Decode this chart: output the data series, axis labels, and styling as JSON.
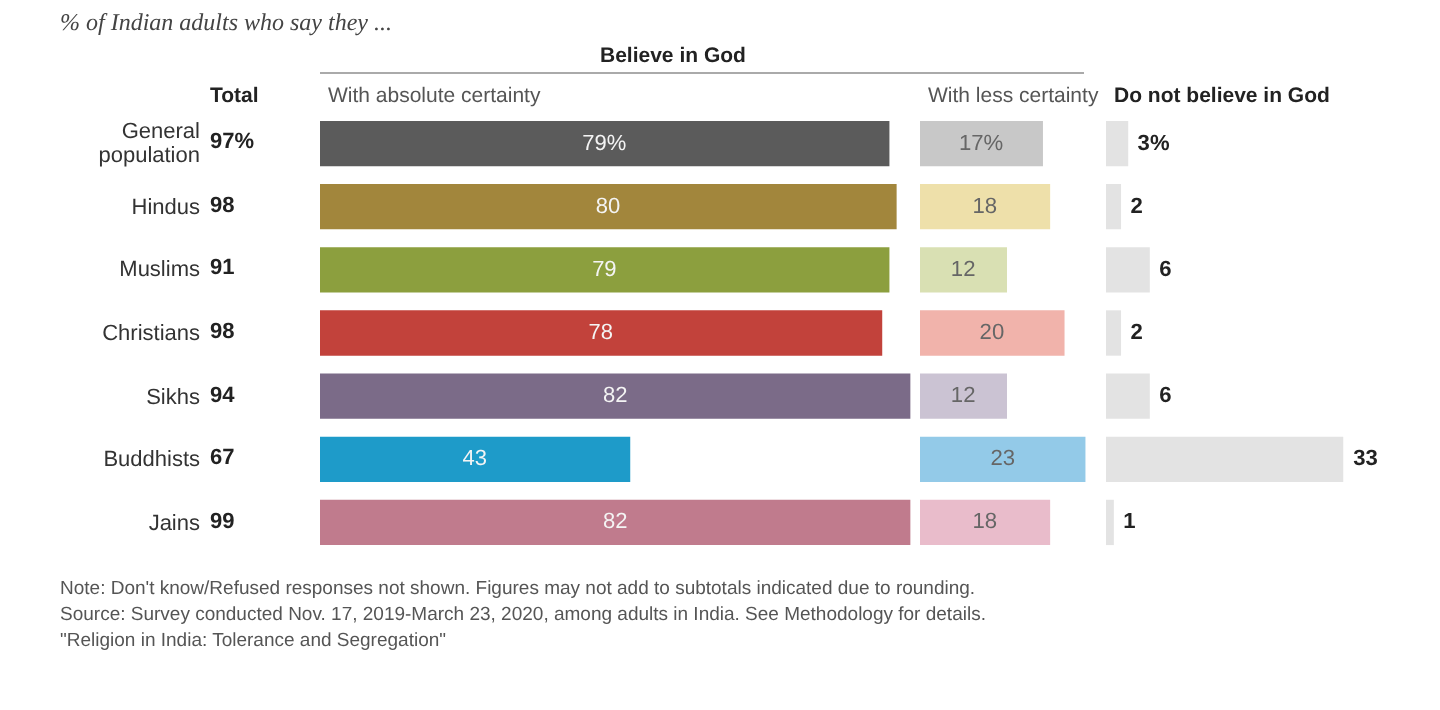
{
  "chart_data": [
    {
      "type": "other",
      "title": "% of Indian adults who say they ...",
      "xlabel": "Total",
      "categories": [
        "General population",
        "Hindus",
        "Muslims",
        "Christians",
        "Sikhs",
        "Buddhists",
        "Jains"
      ],
      "values": [
        97,
        98,
        91,
        98,
        94,
        67,
        99
      ],
      "value_labels": [
        "97%",
        "98",
        "91",
        "98",
        "94",
        "67",
        "99"
      ],
      "annotations": [
        "Note: Don't know/Refused responses not shown. Figures may not add to subtotals indicated due to rounding.",
        "Source: Survey conducted Nov. 17, 2019-March 23, 2020, among adults in India. See Methodology for details.",
        "\"Religion in India: Tolerance and Segregation\""
      ]
    },
    {
      "type": "bar",
      "orientation": "horizontal",
      "title": "With absolute certainty",
      "annotations": [
        "Believe in God"
      ],
      "categories": [
        null,
        null,
        null,
        null,
        null,
        null,
        null
      ],
      "values": [
        79,
        80,
        79,
        78,
        82,
        43,
        82
      ],
      "value_labels": [
        "79%",
        "80",
        "79",
        "78",
        "82",
        "43",
        "82"
      ],
      "colors": [
        "#5b5b5b",
        "#a2863c",
        "#8c9f3e",
        "#c2423b",
        "#7b6b88",
        "#1e9bc9",
        "#c07b8d"
      ],
      "xlim": [
        0,
        82
      ],
      "tick_labels": false
    },
    {
      "type": "bar",
      "orientation": "horizontal",
      "title": "With less certainty",
      "categories": [
        null,
        null,
        null,
        null,
        null,
        null,
        null
      ],
      "values": [
        17,
        18,
        12,
        20,
        12,
        23,
        18
      ],
      "value_labels": [
        "17%",
        "18",
        "12",
        "20",
        "12",
        "23",
        "18"
      ],
      "colors": [
        "#c8c8c8",
        "#eee0aa",
        "#d9e0b3",
        "#f1b3ab",
        "#cbc3d3",
        "#93cae8",
        "#e9bccb"
      ],
      "xlim": [
        0,
        23
      ],
      "tick_labels": false
    },
    {
      "type": "bar",
      "orientation": "horizontal",
      "title": "Do not believe in God",
      "categories": [
        null,
        null,
        null,
        null,
        null,
        null,
        null
      ],
      "values": [
        3,
        2,
        6,
        2,
        6,
        33,
        1
      ],
      "value_labels": [
        "3%",
        "2",
        "6",
        "2",
        "6",
        "33",
        "1"
      ],
      "colors": [
        "#e3e3e3",
        "#e3e3e3",
        "#e3e3e3",
        "#e3e3e3",
        "#e3e3e3",
        "#e3e3e3",
        "#e3e3e3"
      ],
      "xlim": [
        0,
        33
      ],
      "tick_labels": false
    }
  ]
}
